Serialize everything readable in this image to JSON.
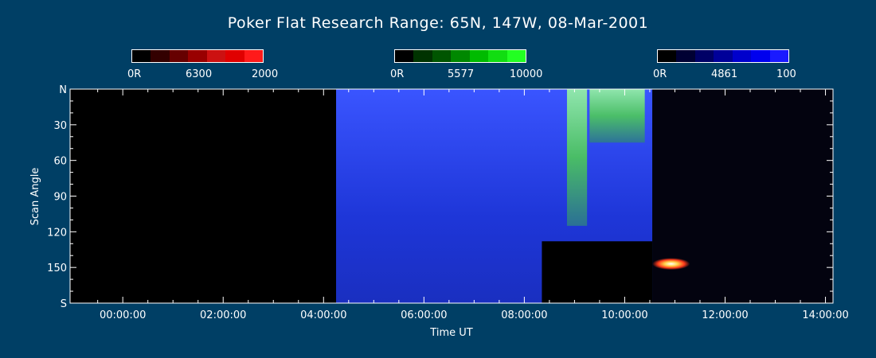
{
  "chart_data": {
    "type": "heatmap",
    "title": "Poker Flat Research Range: 65N, 147W, 08-Mar-2001",
    "xlabel": "Time UT",
    "ylabel": "Scan Angle",
    "x_ticks": [
      "00:00:00",
      "02:00:00",
      "04:00:00",
      "06:00:00",
      "08:00:00",
      "10:00:00",
      "12:00:00",
      "14:00:00"
    ],
    "x_tick_hours": [
      0,
      2,
      4,
      6,
      8,
      10,
      12,
      14
    ],
    "xlim_hours": [
      -1.05,
      14.15
    ],
    "y_ticks": [
      "N",
      "30",
      "60",
      "90",
      "120",
      "150",
      "S"
    ],
    "y_tick_values": [
      0,
      30,
      60,
      90,
      120,
      150,
      180
    ],
    "ylim": [
      0,
      180
    ],
    "colorbars": [
      {
        "name": "6300",
        "min_label": "0R",
        "max_label": "2000",
        "colors": [
          "#000000",
          "#330000",
          "#660000",
          "#990000",
          "#cc1111",
          "#e00000",
          "#ff1a1a"
        ]
      },
      {
        "name": "5577",
        "min_label": "0R",
        "max_label": "10000",
        "colors": [
          "#000000",
          "#003300",
          "#005500",
          "#008800",
          "#00bb00",
          "#11dd11",
          "#22ff22"
        ]
      },
      {
        "name": "4861",
        "min_label": "0R",
        "max_label": "100",
        "colors": [
          "#000000",
          "#000033",
          "#000066",
          "#000099",
          "#0000cc",
          "#0000ee",
          "#1a1aff"
        ]
      }
    ],
    "data_regions": [
      {
        "kind": "no-data",
        "x_start": -1.05,
        "x_end": 4.25,
        "y_start": 0,
        "y_end": 180,
        "color": "#000000"
      },
      {
        "kind": "emission",
        "x_start": 4.25,
        "x_end": 10.55,
        "y_start": 0,
        "y_end": 180,
        "color": "#2a3cf0"
      },
      {
        "kind": "emission",
        "x_start": 8.85,
        "x_end": 9.25,
        "y_start": 0,
        "y_end": 115,
        "color": "#6ee06e"
      },
      {
        "kind": "emission",
        "x_start": 9.3,
        "x_end": 10.4,
        "y_start": 0,
        "y_end": 45,
        "color": "#4ab84a"
      },
      {
        "kind": "no-data",
        "x_start": 8.35,
        "x_end": 10.55,
        "y_start": 128,
        "y_end": 180,
        "color": "#000000"
      },
      {
        "kind": "emission",
        "x_start": 10.55,
        "x_end": 14.15,
        "y_start": 0,
        "y_end": 180,
        "color": "#03030f"
      },
      {
        "kind": "emission",
        "x_start": 10.55,
        "x_end": 11.3,
        "y_start": 142,
        "y_end": 152,
        "color": "#d8c020"
      }
    ]
  }
}
